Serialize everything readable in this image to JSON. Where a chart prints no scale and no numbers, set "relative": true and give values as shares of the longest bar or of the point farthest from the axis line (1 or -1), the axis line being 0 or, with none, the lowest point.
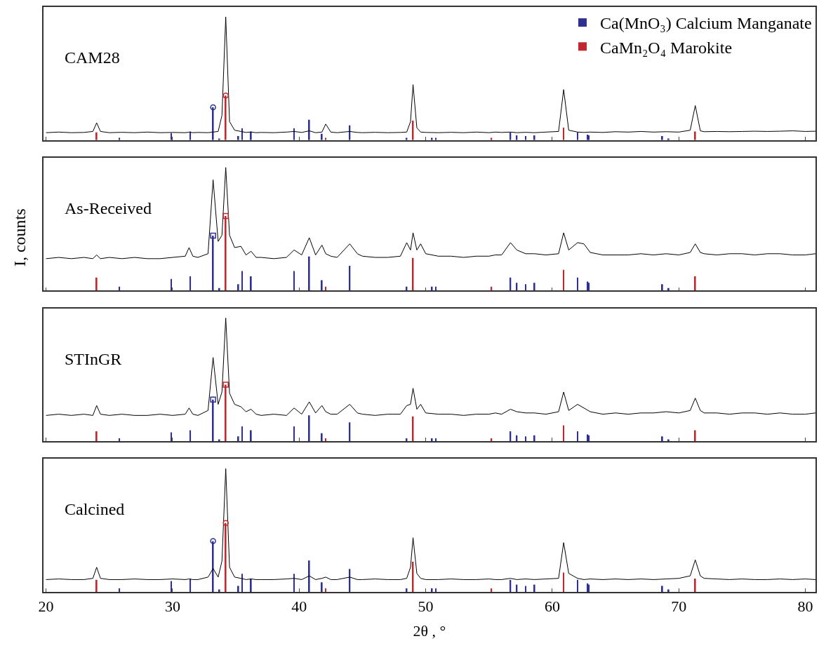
{
  "chart_data": [
    {
      "type": "line",
      "relative": true,
      "annotations": [
        "CAM28"
      ],
      "xlim": [
        19.8,
        80.8
      ],
      "xticks": [
        20,
        30,
        40,
        50,
        60,
        70,
        80
      ],
      "tick_labels": false,
      "grid": false,
      "legend": "top right",
      "line_style": "solid",
      "x": [
        20,
        21,
        22,
        23,
        23.7,
        24.0,
        24.3,
        25,
        26,
        27,
        28,
        29,
        30,
        31,
        31.3,
        31.6,
        32,
        32.8,
        33.2,
        33.6,
        33.9,
        34.2,
        34.5,
        34.9,
        35.4,
        35.8,
        36.2,
        36.6,
        37,
        38,
        39,
        39.6,
        40.2,
        40.8,
        41.3,
        41.8,
        42.1,
        42.5,
        43,
        44.0,
        44.6,
        45,
        46,
        47,
        48,
        48.5,
        48.8,
        49.0,
        49.3,
        49.6,
        50,
        51,
        52,
        53,
        54,
        55,
        55.5,
        56,
        56.7,
        57.2,
        57.9,
        58.6,
        59.5,
        60.5,
        60.9,
        61.3,
        62.0,
        62.5,
        63,
        64,
        65,
        66,
        67,
        68,
        69,
        70,
        70.9,
        71.3,
        71.7,
        72,
        73,
        74,
        75,
        76,
        77,
        78,
        79,
        80,
        80.8
      ],
      "series": [
        {
          "color": "#000000",
          "values": [
            0.06,
            0.065,
            0.06,
            0.062,
            0.07,
            0.14,
            0.07,
            0.06,
            0.063,
            0.06,
            0.065,
            0.06,
            0.062,
            0.06,
            0.064,
            0.06,
            0.062,
            0.06,
            0.065,
            0.07,
            0.2,
            1.0,
            0.15,
            0.08,
            0.07,
            0.062,
            0.065,
            0.06,
            0.062,
            0.06,
            0.065,
            0.07,
            0.062,
            0.075,
            0.06,
            0.065,
            0.13,
            0.065,
            0.06,
            0.07,
            0.062,
            0.06,
            0.063,
            0.06,
            0.062,
            0.065,
            0.15,
            0.45,
            0.1,
            0.065,
            0.062,
            0.06,
            0.063,
            0.06,
            0.065,
            0.06,
            0.065,
            0.062,
            0.065,
            0.06,
            0.063,
            0.06,
            0.065,
            0.07,
            0.41,
            0.08,
            0.065,
            0.062,
            0.065,
            0.062,
            0.068,
            0.065,
            0.07,
            0.065,
            0.068,
            0.065,
            0.08,
            0.28,
            0.075,
            0.068,
            0.07,
            0.068,
            0.07,
            0.072,
            0.07,
            0.072,
            0.075,
            0.07,
            0.072
          ]
        },
        {
          "type": "bar",
          "name": "Ca(MnO₃) Calcium Manganate",
          "color": "#2e3192",
          "x": [
            25.8,
            29.9,
            31.4,
            33.2,
            33.7,
            35.2,
            35.5,
            36.2,
            39.6,
            40.8,
            41.8,
            44.0,
            48.5,
            50.5,
            50.8,
            56.7,
            57.2,
            57.9,
            58.6,
            62.0,
            62.8,
            62.9,
            68.7,
            69.2
          ],
          "values": [
            0.019,
            0.057,
            0.07,
            0.266,
            0.013,
            0.032,
            0.095,
            0.07,
            0.095,
            0.165,
            0.051,
            0.12,
            0.019,
            0.019,
            0.019,
            0.063,
            0.038,
            0.032,
            0.038,
            0.063,
            0.044,
            0.038,
            0.032,
            0.013
          ]
        },
        {
          "type": "bar",
          "name": "CaMn₂O₄ Marokite",
          "color": "#c0282d",
          "x": [
            24.0,
            34.2,
            42.1,
            49.0,
            55.2,
            60.9,
            71.3
          ],
          "values": [
            0.063,
            0.361,
            0.019,
            0.158,
            0.019,
            0.101,
            0.07
          ]
        },
        {
          "type": "scatter",
          "marker": "circle",
          "x": [
            33.2,
            34.2
          ],
          "values": [
            0.266,
            0.361
          ],
          "colors": [
            "#2e3192",
            "#c0282d"
          ]
        }
      ]
    },
    {
      "type": "line",
      "relative": true,
      "ylabel": "I, counts",
      "annotations": [
        "As-Received"
      ],
      "xlim": [
        19.8,
        80.8
      ],
      "xticks": [
        20,
        30,
        40,
        50,
        60,
        70,
        80
      ],
      "tick_labels": false,
      "grid": false,
      "line_style": "solid",
      "x": [
        20,
        21,
        22,
        23,
        23.7,
        24.0,
        24.3,
        25,
        26,
        27,
        28,
        29,
        30,
        31,
        31.3,
        31.6,
        32,
        32.8,
        33.2,
        33.6,
        33.9,
        34.2,
        34.5,
        34.9,
        35.4,
        35.8,
        36.2,
        36.6,
        37,
        38,
        39,
        39.6,
        40.2,
        40.8,
        41.3,
        41.8,
        42.1,
        42.5,
        43,
        44.0,
        44.6,
        45,
        46,
        47,
        48,
        48.5,
        48.8,
        49.0,
        49.3,
        49.6,
        50,
        51,
        52,
        53,
        54,
        55,
        55.5,
        56,
        56.7,
        57.2,
        57.9,
        58.6,
        59.5,
        60.5,
        60.9,
        61.3,
        62.0,
        62.5,
        63,
        64,
        65,
        66,
        67,
        68,
        69,
        70,
        70.9,
        71.3,
        71.7,
        72,
        73,
        74,
        75,
        76,
        77,
        78,
        79,
        80,
        80.8
      ],
      "series": [
        {
          "color": "#000000",
          "values": [
            0.26,
            0.27,
            0.26,
            0.27,
            0.26,
            0.29,
            0.26,
            0.27,
            0.26,
            0.27,
            0.26,
            0.26,
            0.27,
            0.28,
            0.35,
            0.28,
            0.27,
            0.3,
            0.9,
            0.4,
            0.45,
            1.0,
            0.45,
            0.35,
            0.36,
            0.29,
            0.32,
            0.27,
            0.27,
            0.26,
            0.27,
            0.33,
            0.29,
            0.43,
            0.29,
            0.37,
            0.3,
            0.28,
            0.27,
            0.38,
            0.3,
            0.28,
            0.27,
            0.27,
            0.28,
            0.39,
            0.33,
            0.47,
            0.33,
            0.38,
            0.3,
            0.28,
            0.28,
            0.27,
            0.28,
            0.28,
            0.29,
            0.29,
            0.39,
            0.33,
            0.3,
            0.3,
            0.29,
            0.3,
            0.47,
            0.33,
            0.39,
            0.38,
            0.31,
            0.29,
            0.29,
            0.29,
            0.3,
            0.29,
            0.3,
            0.29,
            0.31,
            0.38,
            0.31,
            0.3,
            0.29,
            0.3,
            0.3,
            0.29,
            0.3,
            0.3,
            0.29,
            0.29,
            0.3
          ]
        },
        {
          "type": "bar",
          "color": "#2e3192",
          "x": [
            25.8,
            29.9,
            31.4,
            33.2,
            33.7,
            35.2,
            35.5,
            36.2,
            39.6,
            40.8,
            41.8,
            44.0,
            48.5,
            50.5,
            50.8,
            56.7,
            57.2,
            57.9,
            58.6,
            62.0,
            62.8,
            62.9,
            68.7,
            69.2
          ],
          "values": [
            0.032,
            0.096,
            0.117,
            0.447,
            0.021,
            0.053,
            0.16,
            0.117,
            0.16,
            0.277,
            0.085,
            0.202,
            0.032,
            0.032,
            0.032,
            0.106,
            0.064,
            0.053,
            0.064,
            0.106,
            0.074,
            0.064,
            0.053,
            0.021
          ]
        },
        {
          "type": "bar",
          "color": "#c0282d",
          "x": [
            24.0,
            34.2,
            42.1,
            49.0,
            55.2,
            60.9,
            71.3
          ],
          "values": [
            0.106,
            0.606,
            0.032,
            0.266,
            0.032,
            0.17,
            0.117
          ]
        },
        {
          "type": "scatter",
          "marker": "square",
          "x": [
            33.2,
            34.2
          ],
          "values": [
            0.447,
            0.606
          ],
          "colors": [
            "#2e3192",
            "#c0282d"
          ]
        }
      ]
    },
    {
      "type": "line",
      "relative": true,
      "annotations": [
        "STInGR"
      ],
      "xlim": [
        19.8,
        80.8
      ],
      "xticks": [
        20,
        30,
        40,
        50,
        60,
        70,
        80
      ],
      "tick_labels": false,
      "grid": false,
      "line_style": "solid",
      "x": [
        20,
        21,
        22,
        23,
        23.7,
        24.0,
        24.3,
        25,
        26,
        27,
        28,
        29,
        30,
        31,
        31.3,
        31.6,
        32,
        32.8,
        33.2,
        33.6,
        33.9,
        34.2,
        34.5,
        34.9,
        35.4,
        35.8,
        36.2,
        36.6,
        37,
        38,
        39,
        39.6,
        40.2,
        40.8,
        41.3,
        41.8,
        42.1,
        42.5,
        43,
        44.0,
        44.6,
        45,
        46,
        47,
        48,
        48.5,
        48.8,
        49.0,
        49.3,
        49.6,
        50,
        51,
        52,
        53,
        54,
        55,
        55.5,
        56,
        56.7,
        57.2,
        57.9,
        58.6,
        59.5,
        60.5,
        60.9,
        61.3,
        62.0,
        62.5,
        63,
        64,
        65,
        66,
        67,
        68,
        69,
        70,
        70.9,
        71.3,
        71.7,
        72,
        73,
        74,
        75,
        76,
        77,
        78,
        79,
        80,
        80.8
      ],
      "series": [
        {
          "color": "#000000",
          "values": [
            0.21,
            0.22,
            0.21,
            0.22,
            0.21,
            0.29,
            0.22,
            0.21,
            0.22,
            0.21,
            0.21,
            0.22,
            0.21,
            0.22,
            0.27,
            0.22,
            0.21,
            0.25,
            0.68,
            0.3,
            0.4,
            1.0,
            0.39,
            0.3,
            0.28,
            0.24,
            0.26,
            0.22,
            0.21,
            0.22,
            0.21,
            0.27,
            0.22,
            0.32,
            0.23,
            0.29,
            0.24,
            0.22,
            0.22,
            0.3,
            0.23,
            0.22,
            0.21,
            0.22,
            0.22,
            0.29,
            0.3,
            0.43,
            0.26,
            0.3,
            0.23,
            0.22,
            0.22,
            0.21,
            0.22,
            0.22,
            0.23,
            0.22,
            0.26,
            0.24,
            0.23,
            0.23,
            0.22,
            0.24,
            0.4,
            0.25,
            0.3,
            0.27,
            0.24,
            0.22,
            0.23,
            0.22,
            0.23,
            0.23,
            0.24,
            0.23,
            0.25,
            0.35,
            0.25,
            0.23,
            0.23,
            0.22,
            0.23,
            0.23,
            0.22,
            0.23,
            0.22,
            0.22,
            0.23
          ]
        },
        {
          "type": "bar",
          "color": "#2e3192",
          "x": [
            25.8,
            29.9,
            31.4,
            33.2,
            33.7,
            35.2,
            35.5,
            36.2,
            39.6,
            40.8,
            41.8,
            44.0,
            48.5,
            50.5,
            50.8,
            56.7,
            57.2,
            57.9,
            58.6,
            62.0,
            62.8,
            62.9,
            68.7,
            69.2
          ],
          "values": [
            0.024,
            0.073,
            0.089,
            0.339,
            0.016,
            0.04,
            0.121,
            0.089,
            0.121,
            0.21,
            0.065,
            0.153,
            0.024,
            0.024,
            0.024,
            0.081,
            0.048,
            0.04,
            0.048,
            0.081,
            0.056,
            0.048,
            0.04,
            0.016
          ]
        },
        {
          "type": "bar",
          "color": "#c0282d",
          "x": [
            24.0,
            34.2,
            42.1,
            49.0,
            55.2,
            60.9,
            71.3
          ],
          "values": [
            0.081,
            0.46,
            0.024,
            0.202,
            0.024,
            0.129,
            0.089
          ]
        },
        {
          "type": "scatter",
          "marker": "square",
          "x": [
            33.2,
            34.2
          ],
          "values": [
            0.339,
            0.46
          ],
          "colors": [
            "#2e3192",
            "#c0282d"
          ]
        }
      ]
    },
    {
      "type": "line",
      "relative": true,
      "xlabel": "2θ , °",
      "annotations": [
        "Calcined"
      ],
      "xlim": [
        19.8,
        80.8
      ],
      "xticks": [
        20,
        30,
        40,
        50,
        60,
        70,
        80
      ],
      "tick_labels": "x",
      "grid": false,
      "line_style": "solid",
      "x": [
        20,
        21,
        22,
        23,
        23.7,
        24.0,
        24.3,
        25,
        26,
        27,
        28,
        29,
        30,
        31,
        31.3,
        31.6,
        32,
        32.8,
        33.2,
        33.6,
        33.9,
        34.2,
        34.5,
        34.9,
        35.4,
        35.8,
        36.2,
        36.6,
        37,
        38,
        39,
        39.6,
        40.2,
        40.8,
        41.3,
        41.8,
        42.1,
        42.5,
        43,
        44.0,
        44.6,
        45,
        46,
        47,
        48,
        48.5,
        48.8,
        49.0,
        49.3,
        49.6,
        50,
        51,
        52,
        53,
        54,
        55,
        55.5,
        56,
        56.7,
        57.2,
        57.9,
        58.6,
        59.5,
        60.5,
        60.9,
        61.3,
        62.0,
        62.5,
        63,
        64,
        65,
        66,
        67,
        68,
        69,
        70,
        70.9,
        71.3,
        71.7,
        72,
        73,
        74,
        75,
        76,
        77,
        78,
        79,
        80,
        80.8
      ],
      "series": [
        {
          "color": "#000000",
          "values": [
            0.1,
            0.105,
            0.1,
            0.1,
            0.11,
            0.2,
            0.11,
            0.1,
            0.1,
            0.105,
            0.1,
            0.1,
            0.105,
            0.1,
            0.105,
            0.1,
            0.1,
            0.12,
            0.19,
            0.12,
            0.25,
            1.0,
            0.2,
            0.12,
            0.11,
            0.1,
            0.105,
            0.1,
            0.1,
            0.1,
            0.105,
            0.11,
            0.1,
            0.13,
            0.1,
            0.11,
            0.12,
            0.1,
            0.1,
            0.12,
            0.1,
            0.1,
            0.105,
            0.1,
            0.1,
            0.11,
            0.2,
            0.44,
            0.15,
            0.11,
            0.1,
            0.1,
            0.105,
            0.1,
            0.1,
            0.105,
            0.1,
            0.1,
            0.11,
            0.1,
            0.105,
            0.1,
            0.105,
            0.11,
            0.4,
            0.15,
            0.11,
            0.1,
            0.105,
            0.1,
            0.105,
            0.1,
            0.105,
            0.1,
            0.105,
            0.11,
            0.13,
            0.26,
            0.13,
            0.11,
            0.105,
            0.1,
            0.105,
            0.1,
            0.1,
            0.105,
            0.1,
            0.105,
            0.1
          ]
        },
        {
          "type": "bar",
          "color": "#2e3192",
          "x": [
            25.8,
            29.9,
            31.4,
            33.2,
            33.7,
            35.2,
            35.5,
            36.2,
            39.6,
            40.8,
            41.8,
            44.0,
            48.5,
            50.5,
            50.8,
            56.7,
            57.2,
            57.9,
            58.6,
            62.0,
            62.8,
            62.9,
            68.7,
            69.2
          ],
          "values": [
            0.029,
            0.088,
            0.108,
            0.412,
            0.02,
            0.049,
            0.147,
            0.108,
            0.147,
            0.255,
            0.078,
            0.186,
            0.029,
            0.029,
            0.029,
            0.098,
            0.059,
            0.049,
            0.059,
            0.098,
            0.069,
            0.059,
            0.049,
            0.02
          ]
        },
        {
          "type": "bar",
          "color": "#c0282d",
          "x": [
            24.0,
            34.2,
            42.1,
            49.0,
            55.2,
            60.9,
            71.3
          ],
          "values": [
            0.098,
            0.559,
            0.029,
            0.245,
            0.029,
            0.157,
            0.108
          ]
        },
        {
          "type": "scatter",
          "marker": "circle",
          "x": [
            33.2,
            34.2
          ],
          "values": [
            0.412,
            0.559
          ],
          "colors": [
            "#2e3192",
            "#c0282d"
          ]
        }
      ]
    }
  ]
}
